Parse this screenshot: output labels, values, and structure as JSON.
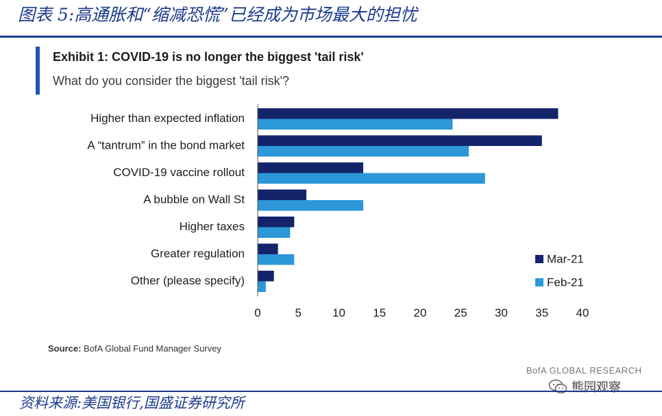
{
  "figure_title": "图表 5:高通胀和“缩减恐慌”已经成为市场最大的担忧",
  "exhibit_title": "Exhibit 1: COVID-19 is no longer the biggest 'tail risk'",
  "exhibit_subtitle": "What do you consider the biggest 'tail risk'?",
  "source_label": "Source:",
  "source_text": "BofA Global Fund Manager Survey",
  "brand_text": "BofA GLOBAL RESEARCH",
  "watermark_text": "熊园观察",
  "figure_source": "资料来源:美国银行,国盛证券研究所",
  "colors": {
    "mar21": "#14246b",
    "feb21": "#2c97d9",
    "title_blue": "#1a3a8c"
  },
  "chart_data": {
    "type": "bar",
    "orientation": "horizontal",
    "categories": [
      "Higher than expected inflation",
      "A “tantrum” in the bond market",
      "COVID-19 vaccine rollout",
      "A bubble on Wall St",
      "Higher taxes",
      "Greater regulation",
      "Other (please specify)"
    ],
    "series": [
      {
        "name": "Mar-21",
        "values": [
          37,
          35,
          13,
          6,
          4.5,
          2.5,
          2
        ]
      },
      {
        "name": "Feb-21",
        "values": [
          24,
          26,
          28,
          13,
          4,
          4.5,
          1
        ]
      }
    ],
    "xlim": [
      0,
      40
    ],
    "xticks": [
      0,
      5,
      10,
      15,
      20,
      25,
      30,
      35,
      40
    ],
    "title": "",
    "xlabel": "",
    "ylabel": "",
    "grid": false,
    "legend_position": "bottom-right"
  }
}
